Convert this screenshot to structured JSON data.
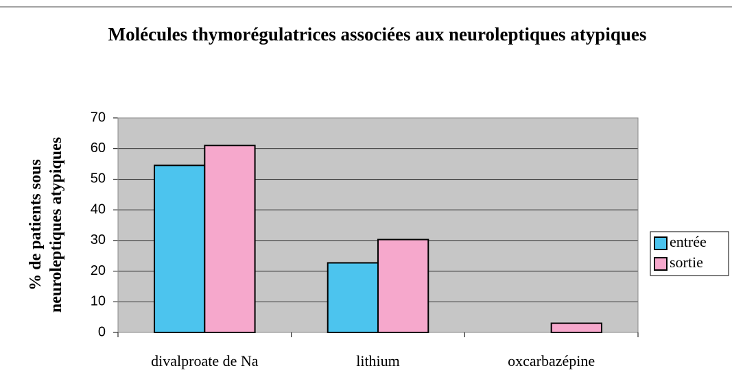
{
  "chart_data": {
    "type": "bar",
    "title": "Molécules thymorégulatrices associées aux neuroleptiques atypiques",
    "ylabel": "% de patients sous neuroleptiques atypiques",
    "categories": [
      "divalproate de Na",
      "lithium",
      "oxcarbazépine"
    ],
    "series": [
      {
        "name": "entrée",
        "color": "#4cc4ee",
        "values": [
          54.5,
          22.7,
          0
        ]
      },
      {
        "name": "sortie",
        "color": "#f6a8cc",
        "values": [
          61,
          30.3,
          3
        ]
      }
    ],
    "ylim": [
      0,
      70
    ],
    "yticks": [
      0,
      10,
      20,
      30,
      40,
      50,
      60,
      70
    ],
    "grid": true,
    "legend": "right"
  }
}
